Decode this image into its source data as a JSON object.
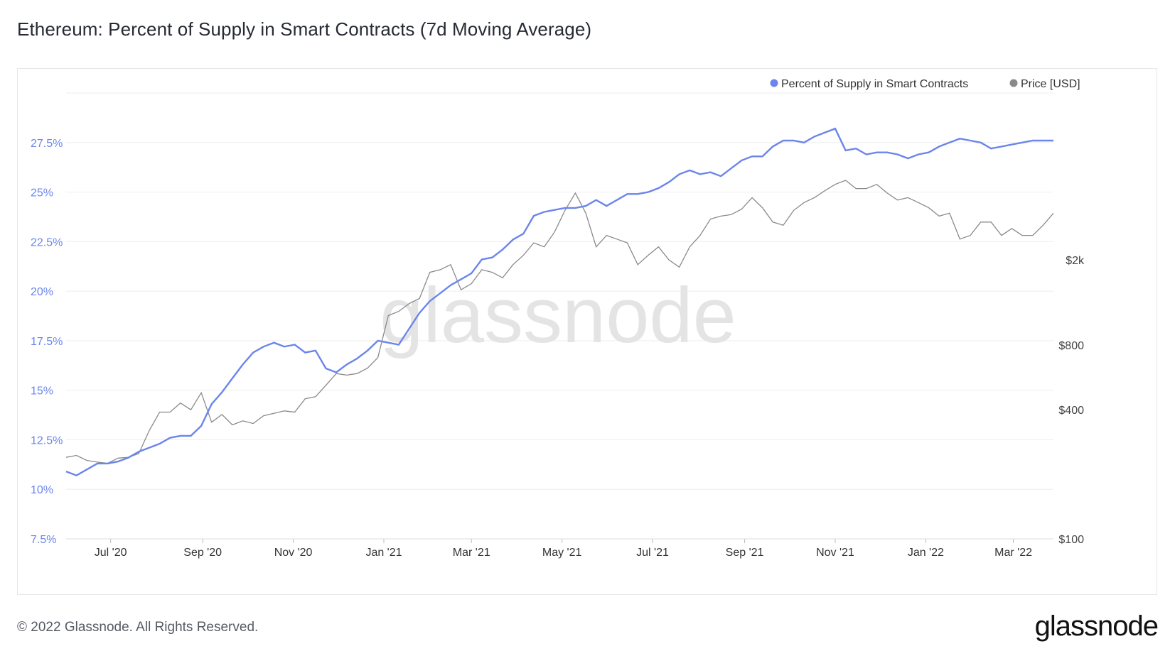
{
  "header": {
    "title": "Ethereum: Percent of Supply in Smart Contracts (7d Moving Average)"
  },
  "footer": {
    "copyright": "© 2022 Glassnode. All Rights Reserved.",
    "brand": "glassnode"
  },
  "watermark": "glassnode",
  "colors": {
    "supply_series": "#6b85ec",
    "price_series": "#8a8a8a",
    "left_axis": "#6b85ec",
    "right_axis": "#444444",
    "grid": "#eeeeee"
  },
  "chart_data": {
    "type": "line",
    "title": "Ethereum: Percent of Supply in Smart Contracts (7d Moving Average)",
    "legend": {
      "placement": "top-right",
      "entries": [
        "Percent of Supply in Smart Contracts",
        "Price [USD]"
      ]
    },
    "x_ticks": [
      "Jul '20",
      "Sep '20",
      "Nov '20",
      "Jan '21",
      "Mar '21",
      "May '21",
      "Jul '21",
      "Sep '21",
      "Nov '21",
      "Jan '22",
      "Mar '22"
    ],
    "x_range": [
      "2020-06-01",
      "2022-03-28"
    ],
    "y_left": {
      "ticks": [
        "7.5%",
        "10%",
        "12.5%",
        "15%",
        "17.5%",
        "20%",
        "22.5%",
        "25%",
        "27.5%"
      ],
      "range": [
        7.5,
        30.0
      ]
    },
    "y_right": {
      "scale": "log",
      "ticks": [
        "$100",
        "$400",
        "$800",
        "$2k"
      ],
      "tick_values": [
        100,
        400,
        800,
        2000
      ],
      "range": [
        100,
        12000
      ]
    },
    "grid": true,
    "series": [
      {
        "name": "Percent of Supply in Smart Contracts",
        "axis": "left",
        "points": [
          [
            "2020-06-01",
            10.9
          ],
          [
            "2020-06-08",
            10.7
          ],
          [
            "2020-06-15",
            11.0
          ],
          [
            "2020-06-22",
            11.3
          ],
          [
            "2020-06-29",
            11.3
          ],
          [
            "2020-07-06",
            11.4
          ],
          [
            "2020-07-13",
            11.6
          ],
          [
            "2020-07-20",
            11.9
          ],
          [
            "2020-07-27",
            12.1
          ],
          [
            "2020-08-03",
            12.3
          ],
          [
            "2020-08-10",
            12.6
          ],
          [
            "2020-08-17",
            12.7
          ],
          [
            "2020-08-24",
            12.7
          ],
          [
            "2020-08-31",
            13.2
          ],
          [
            "2020-09-07",
            14.3
          ],
          [
            "2020-09-14",
            14.9
          ],
          [
            "2020-09-21",
            15.6
          ],
          [
            "2020-09-28",
            16.3
          ],
          [
            "2020-10-05",
            16.9
          ],
          [
            "2020-10-12",
            17.2
          ],
          [
            "2020-10-19",
            17.4
          ],
          [
            "2020-10-26",
            17.2
          ],
          [
            "2020-11-02",
            17.3
          ],
          [
            "2020-11-09",
            16.9
          ],
          [
            "2020-11-16",
            17.0
          ],
          [
            "2020-11-23",
            16.1
          ],
          [
            "2020-11-30",
            15.9
          ],
          [
            "2020-12-07",
            16.3
          ],
          [
            "2020-12-14",
            16.6
          ],
          [
            "2020-12-21",
            17.0
          ],
          [
            "2020-12-28",
            17.5
          ],
          [
            "2021-01-04",
            17.4
          ],
          [
            "2021-01-11",
            17.3
          ],
          [
            "2021-01-18",
            18.1
          ],
          [
            "2021-01-25",
            18.9
          ],
          [
            "2021-02-01",
            19.5
          ],
          [
            "2021-02-08",
            19.9
          ],
          [
            "2021-02-15",
            20.3
          ],
          [
            "2021-02-22",
            20.6
          ],
          [
            "2021-03-01",
            20.9
          ],
          [
            "2021-03-08",
            21.6
          ],
          [
            "2021-03-15",
            21.7
          ],
          [
            "2021-03-22",
            22.1
          ],
          [
            "2021-03-29",
            22.6
          ],
          [
            "2021-04-05",
            22.9
          ],
          [
            "2021-04-12",
            23.8
          ],
          [
            "2021-04-19",
            24.0
          ],
          [
            "2021-04-26",
            24.1
          ],
          [
            "2021-05-03",
            24.2
          ],
          [
            "2021-05-10",
            24.2
          ],
          [
            "2021-05-17",
            24.3
          ],
          [
            "2021-05-24",
            24.6
          ],
          [
            "2021-05-31",
            24.3
          ],
          [
            "2021-06-07",
            24.6
          ],
          [
            "2021-06-14",
            24.9
          ],
          [
            "2021-06-21",
            24.9
          ],
          [
            "2021-06-28",
            25.0
          ],
          [
            "2021-07-05",
            25.2
          ],
          [
            "2021-07-12",
            25.5
          ],
          [
            "2021-07-19",
            25.9
          ],
          [
            "2021-07-26",
            26.1
          ],
          [
            "2021-08-02",
            25.9
          ],
          [
            "2021-08-09",
            26.0
          ],
          [
            "2021-08-16",
            25.8
          ],
          [
            "2021-08-23",
            26.2
          ],
          [
            "2021-08-30",
            26.6
          ],
          [
            "2021-09-06",
            26.8
          ],
          [
            "2021-09-13",
            26.8
          ],
          [
            "2021-09-20",
            27.3
          ],
          [
            "2021-09-27",
            27.6
          ],
          [
            "2021-10-04",
            27.6
          ],
          [
            "2021-10-11",
            27.5
          ],
          [
            "2021-10-18",
            27.8
          ],
          [
            "2021-10-25",
            28.0
          ],
          [
            "2021-11-01",
            28.2
          ],
          [
            "2021-11-08",
            27.1
          ],
          [
            "2021-11-15",
            27.2
          ],
          [
            "2021-11-22",
            26.9
          ],
          [
            "2021-11-29",
            27.0
          ],
          [
            "2021-12-06",
            27.0
          ],
          [
            "2021-12-13",
            26.9
          ],
          [
            "2021-12-20",
            26.7
          ],
          [
            "2021-12-27",
            26.9
          ],
          [
            "2022-01-03",
            27.0
          ],
          [
            "2022-01-10",
            27.3
          ],
          [
            "2022-01-17",
            27.5
          ],
          [
            "2022-01-24",
            27.7
          ],
          [
            "2022-01-31",
            27.6
          ],
          [
            "2022-02-07",
            27.5
          ],
          [
            "2022-02-14",
            27.2
          ],
          [
            "2022-02-21",
            27.3
          ],
          [
            "2022-02-28",
            27.4
          ],
          [
            "2022-03-07",
            27.5
          ],
          [
            "2022-03-14",
            27.6
          ],
          [
            "2022-03-21",
            27.6
          ],
          [
            "2022-03-28",
            27.6
          ]
        ]
      },
      {
        "name": "Price [USD]",
        "axis": "right",
        "points": [
          [
            "2020-06-01",
            240
          ],
          [
            "2020-06-08",
            245
          ],
          [
            "2020-06-15",
            232
          ],
          [
            "2020-06-22",
            228
          ],
          [
            "2020-06-29",
            225
          ],
          [
            "2020-07-06",
            238
          ],
          [
            "2020-07-13",
            240
          ],
          [
            "2020-07-20",
            250
          ],
          [
            "2020-07-27",
            320
          ],
          [
            "2020-08-03",
            390
          ],
          [
            "2020-08-10",
            390
          ],
          [
            "2020-08-17",
            430
          ],
          [
            "2020-08-24",
            400
          ],
          [
            "2020-08-31",
            480
          ],
          [
            "2020-09-07",
            350
          ],
          [
            "2020-09-14",
            380
          ],
          [
            "2020-09-21",
            340
          ],
          [
            "2020-09-28",
            355
          ],
          [
            "2020-10-05",
            345
          ],
          [
            "2020-10-12",
            375
          ],
          [
            "2020-10-19",
            385
          ],
          [
            "2020-10-26",
            395
          ],
          [
            "2020-11-02",
            390
          ],
          [
            "2020-11-09",
            450
          ],
          [
            "2020-11-16",
            460
          ],
          [
            "2020-11-23",
            520
          ],
          [
            "2020-11-30",
            590
          ],
          [
            "2020-12-07",
            580
          ],
          [
            "2020-12-14",
            590
          ],
          [
            "2020-12-21",
            625
          ],
          [
            "2020-12-28",
            700
          ],
          [
            "2021-01-04",
            1100
          ],
          [
            "2021-01-11",
            1150
          ],
          [
            "2021-01-18",
            1250
          ],
          [
            "2021-01-25",
            1320
          ],
          [
            "2021-02-01",
            1750
          ],
          [
            "2021-02-08",
            1800
          ],
          [
            "2021-02-15",
            1900
          ],
          [
            "2021-02-22",
            1450
          ],
          [
            "2021-03-01",
            1550
          ],
          [
            "2021-03-08",
            1800
          ],
          [
            "2021-03-15",
            1750
          ],
          [
            "2021-03-22",
            1650
          ],
          [
            "2021-03-29",
            1900
          ],
          [
            "2021-04-05",
            2100
          ],
          [
            "2021-04-12",
            2400
          ],
          [
            "2021-04-19",
            2300
          ],
          [
            "2021-04-26",
            2700
          ],
          [
            "2021-05-03",
            3400
          ],
          [
            "2021-05-10",
            4100
          ],
          [
            "2021-05-17",
            3300
          ],
          [
            "2021-05-24",
            2300
          ],
          [
            "2021-05-31",
            2600
          ],
          [
            "2021-06-07",
            2500
          ],
          [
            "2021-06-14",
            2400
          ],
          [
            "2021-06-21",
            1900
          ],
          [
            "2021-06-28",
            2100
          ],
          [
            "2021-07-05",
            2300
          ],
          [
            "2021-07-12",
            2000
          ],
          [
            "2021-07-19",
            1850
          ],
          [
            "2021-07-26",
            2300
          ],
          [
            "2021-08-02",
            2600
          ],
          [
            "2021-08-09",
            3100
          ],
          [
            "2021-08-16",
            3200
          ],
          [
            "2021-08-23",
            3250
          ],
          [
            "2021-08-30",
            3450
          ],
          [
            "2021-09-06",
            3900
          ],
          [
            "2021-09-13",
            3500
          ],
          [
            "2021-09-20",
            3000
          ],
          [
            "2021-09-27",
            2900
          ],
          [
            "2021-10-04",
            3400
          ],
          [
            "2021-10-11",
            3700
          ],
          [
            "2021-10-18",
            3900
          ],
          [
            "2021-10-25",
            4200
          ],
          [
            "2021-11-01",
            4500
          ],
          [
            "2021-11-08",
            4700
          ],
          [
            "2021-11-15",
            4300
          ],
          [
            "2021-11-22",
            4300
          ],
          [
            "2021-11-29",
            4500
          ],
          [
            "2021-12-06",
            4100
          ],
          [
            "2021-12-13",
            3800
          ],
          [
            "2021-12-20",
            3900
          ],
          [
            "2021-12-27",
            3700
          ],
          [
            "2022-01-03",
            3500
          ],
          [
            "2022-01-10",
            3200
          ],
          [
            "2022-01-17",
            3300
          ],
          [
            "2022-01-24",
            2500
          ],
          [
            "2022-01-31",
            2600
          ],
          [
            "2022-02-07",
            3000
          ],
          [
            "2022-02-14",
            3000
          ],
          [
            "2022-02-21",
            2600
          ],
          [
            "2022-02-28",
            2800
          ],
          [
            "2022-03-07",
            2600
          ],
          [
            "2022-03-14",
            2600
          ],
          [
            "2022-03-21",
            2900
          ],
          [
            "2022-03-28",
            3300
          ]
        ]
      }
    ]
  }
}
